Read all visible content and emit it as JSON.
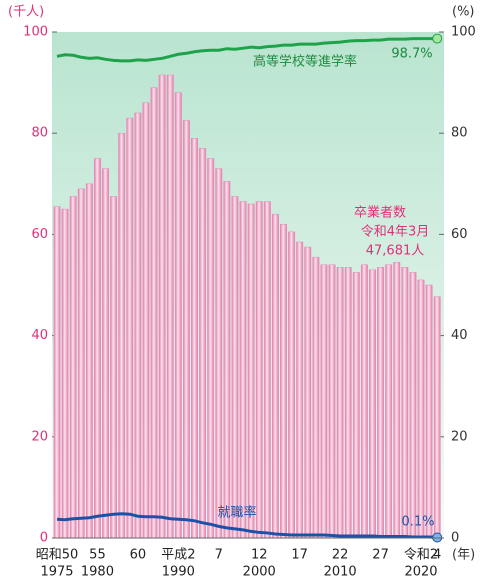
{
  "chart_data": {
    "type": "bar_line",
    "y_unit": "(千人)",
    "y2_unit": "(%)",
    "categories": [
      "昭和50",
      null,
      null,
      null,
      null,
      "55",
      null,
      null,
      null,
      null,
      "60",
      null,
      null,
      null,
      null,
      "平成2",
      null,
      null,
      null,
      null,
      "7",
      null,
      null,
      null,
      null,
      "12",
      null,
      null,
      null,
      null,
      "17",
      null,
      null,
      null,
      null,
      "22",
      null,
      null,
      null,
      null,
      "27",
      null,
      null,
      null,
      null,
      "令和2",
      null,
      "4"
    ],
    "categories_ad": [
      "1975",
      null,
      null,
      null,
      null,
      "1980",
      null,
      null,
      null,
      null,
      null,
      null,
      null,
      null,
      null,
      "1990",
      null,
      null,
      null,
      null,
      null,
      null,
      null,
      null,
      null,
      "2000",
      null,
      null,
      null,
      null,
      null,
      null,
      null,
      null,
      null,
      "2010",
      null,
      null,
      null,
      null,
      null,
      null,
      null,
      null,
      null,
      "2020",
      null,
      null
    ],
    "x_unit": "(年)",
    "series": [
      {
        "name": "卒業者数",
        "color": "#e889b4",
        "axis": "y",
        "values": [
          65.5,
          65,
          67.5,
          69,
          70,
          75,
          73,
          67.5,
          80,
          83,
          84,
          86,
          89,
          91.5,
          91.5,
          88,
          82.5,
          79,
          77,
          75,
          73,
          70.5,
          67.5,
          66.5,
          66,
          66.5,
          66.5,
          64,
          62,
          60.5,
          58.5,
          57.5,
          55.5,
          54,
          54,
          53.5,
          53.5,
          52.5,
          54,
          53,
          53.5,
          54,
          54.5,
          53.5,
          52.5,
          51,
          50,
          47.681
        ],
        "value_labels": [
          null,
          null,
          null,
          null,
          null,
          null,
          null,
          null,
          null,
          null,
          null,
          null,
          null,
          null,
          null,
          null,
          null,
          null,
          null,
          null,
          null,
          null,
          null,
          null,
          null,
          null,
          null,
          null,
          null,
          null,
          null,
          null,
          null,
          null,
          null,
          null,
          null,
          null,
          null,
          null,
          null,
          null,
          null,
          null,
          null,
          null,
          null,
          "47,681人"
        ]
      },
      {
        "name": "高等学校等進学率",
        "color": "#1ea34a",
        "axis": "y2",
        "values": [
          95.2,
          95.5,
          95.4,
          95,
          94.8,
          94.9,
          94.6,
          94.4,
          94.3,
          94.3,
          94.5,
          94.4,
          94.6,
          94.8,
          95.2,
          95.6,
          95.8,
          96.1,
          96.3,
          96.4,
          96.4,
          96.7,
          96.6,
          96.8,
          97,
          96.9,
          97.1,
          97.2,
          97.4,
          97.4,
          97.6,
          97.6,
          97.6,
          97.8,
          97.9,
          98,
          98.2,
          98.3,
          98.3,
          98.4,
          98.4,
          98.6,
          98.6,
          98.6,
          98.7,
          98.7,
          98.7,
          98.7
        ],
        "value_labels": [
          null,
          null,
          null,
          null,
          null,
          null,
          null,
          null,
          null,
          null,
          null,
          null,
          null,
          null,
          null,
          null,
          null,
          null,
          null,
          null,
          null,
          null,
          null,
          null,
          null,
          null,
          null,
          null,
          null,
          null,
          null,
          null,
          null,
          null,
          null,
          null,
          null,
          null,
          null,
          null,
          null,
          null,
          null,
          null,
          null,
          null,
          null,
          "98.7%"
        ]
      },
      {
        "name": "就職率",
        "color": "#1b52a8",
        "axis": "y2",
        "values": [
          3.7,
          3.6,
          3.8,
          3.9,
          4.0,
          4.3,
          4.5,
          4.7,
          4.8,
          4.7,
          4.3,
          4.2,
          4.2,
          4.1,
          3.8,
          3.7,
          3.6,
          3.4,
          3.0,
          2.7,
          2.3,
          2.0,
          1.8,
          1.6,
          1.3,
          1.1,
          1.0,
          0.8,
          0.7,
          0.6,
          0.6,
          0.6,
          0.6,
          0.6,
          0.5,
          0.4,
          0.4,
          0.4,
          0.4,
          0.4,
          0.3,
          0.3,
          0.3,
          0.3,
          0.2,
          0.2,
          0.2,
          0.1
        ],
        "value_labels": [
          null,
          null,
          null,
          null,
          null,
          null,
          null,
          null,
          null,
          null,
          null,
          null,
          null,
          null,
          null,
          null,
          null,
          null,
          null,
          null,
          null,
          null,
          null,
          null,
          null,
          null,
          null,
          null,
          null,
          null,
          null,
          null,
          null,
          null,
          null,
          null,
          null,
          null,
          null,
          null,
          null,
          null,
          null,
          null,
          null,
          null,
          null,
          "0.1%"
        ]
      }
    ],
    "annotations": [
      "令和4年3月"
    ],
    "ylim": [
      0,
      100
    ],
    "yticks": [
      0,
      20,
      40,
      60,
      80,
      100
    ],
    "y2lim": [
      0,
      100
    ],
    "y2ticks": [
      0,
      20,
      40,
      60,
      80,
      100
    ]
  }
}
